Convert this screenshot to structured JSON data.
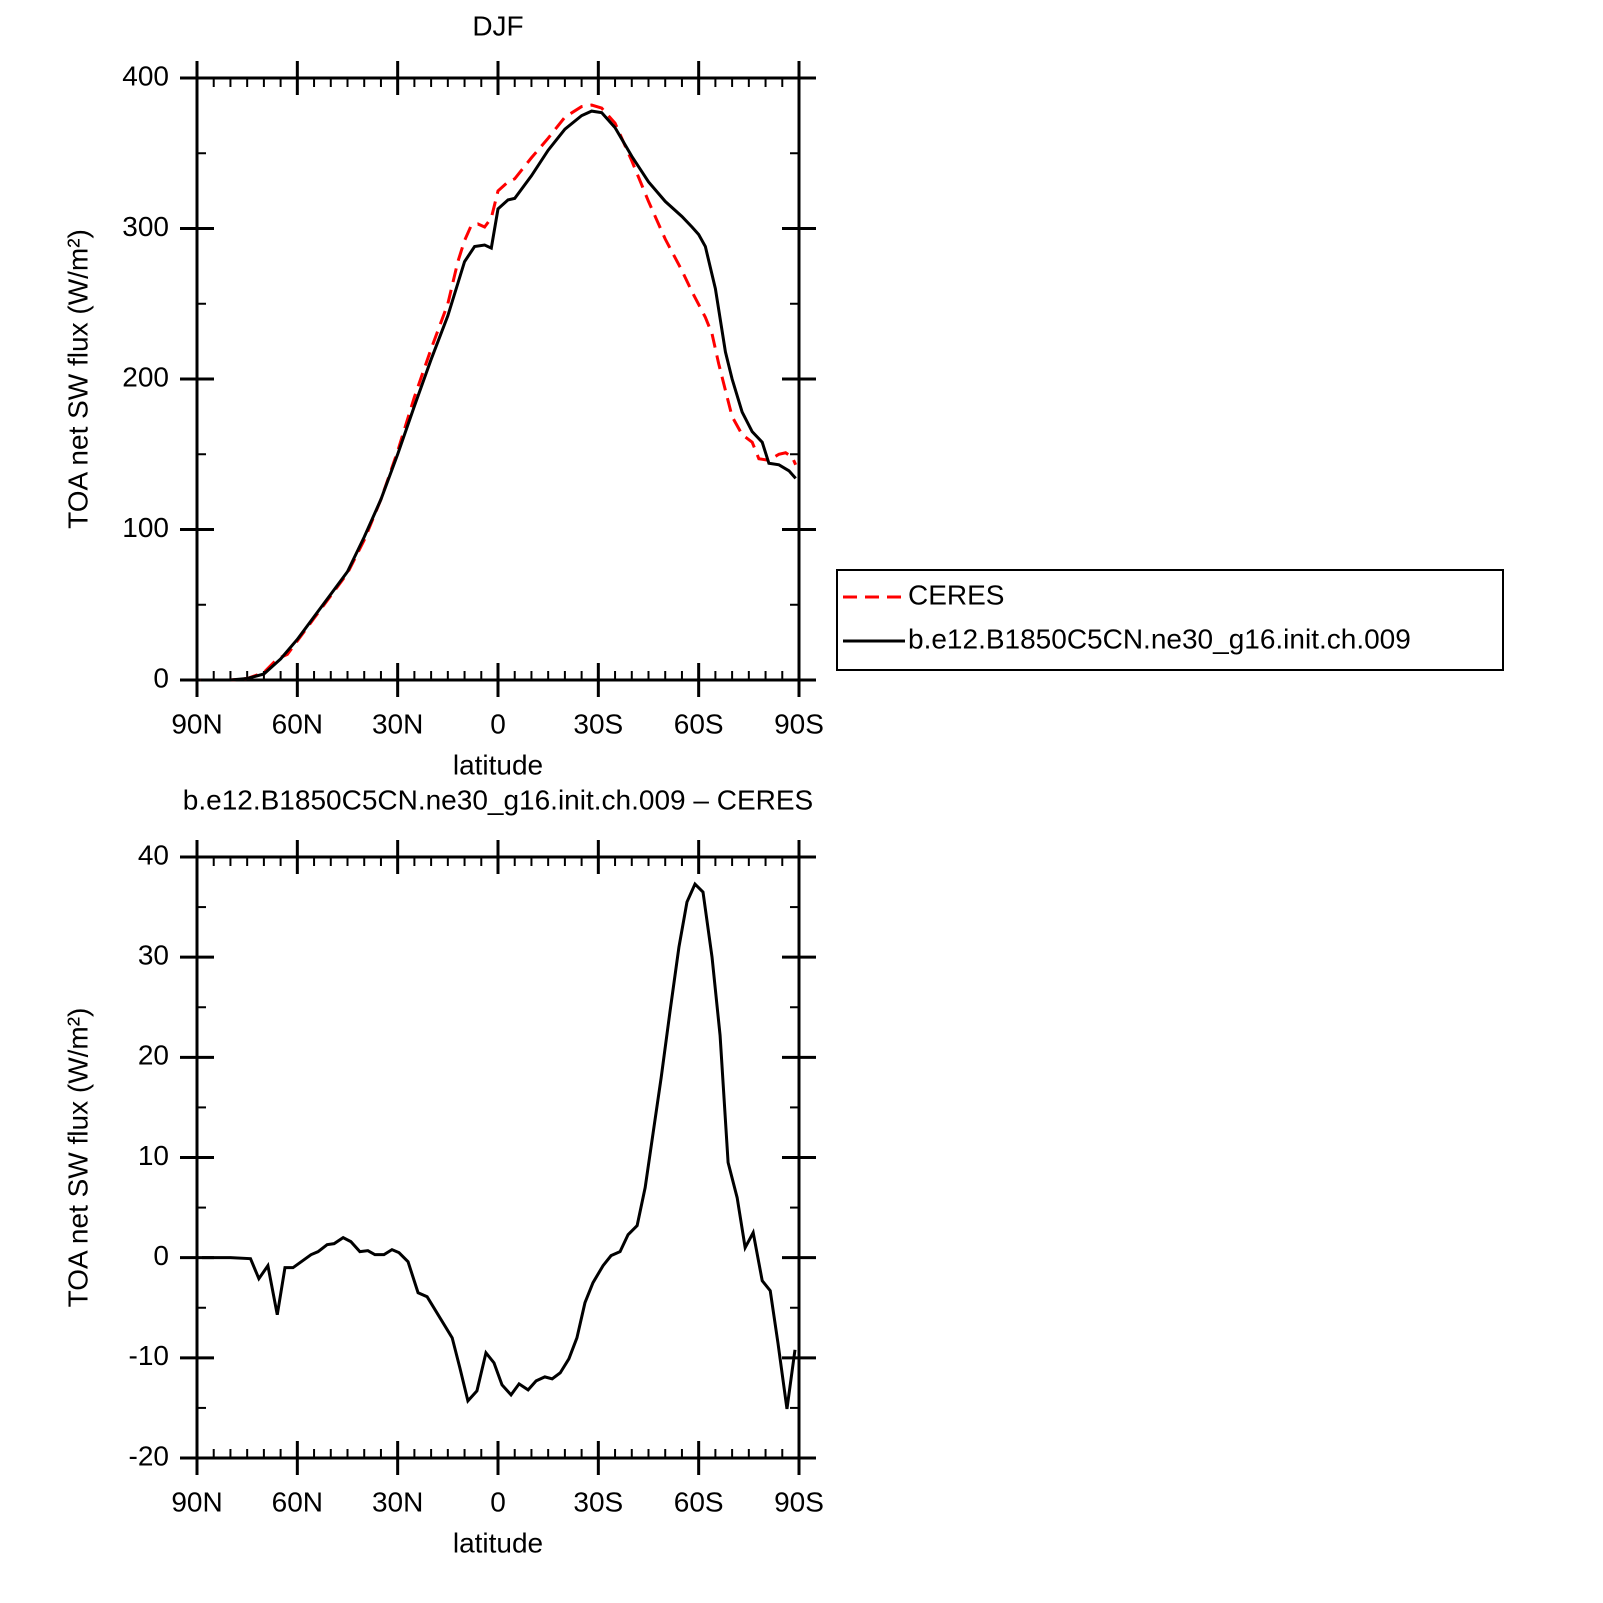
{
  "chart_data": [
    {
      "type": "line",
      "title": "DJF",
      "xlabel": "latitude",
      "ylabel": "TOA net SW flux (W/m²)",
      "xlim": [
        90,
        -90
      ],
      "ylim": [
        0,
        400
      ],
      "xticks": [
        {
          "value": 90,
          "label": "90N"
        },
        {
          "value": 60,
          "label": "60N"
        },
        {
          "value": 30,
          "label": "30N"
        },
        0,
        {
          "value": -30,
          "label": "30S"
        },
        {
          "value": -60,
          "label": "60S"
        },
        {
          "value": -90,
          "label": "90S"
        }
      ],
      "yticks": [
        0,
        100,
        200,
        300,
        400
      ],
      "legend": "right",
      "series": [
        {
          "name": "CERES",
          "color": "#ff0000",
          "linestyle": "dashed",
          "x": [
            89,
            80,
            75,
            70,
            66,
            63,
            60,
            55,
            50,
            45,
            40,
            35,
            30,
            25,
            20,
            15,
            12,
            10,
            8,
            6,
            4,
            2,
            0,
            -3,
            -5,
            -10,
            -15,
            -20,
            -25,
            -28,
            -31,
            -35,
            -40,
            -45,
            -50,
            -55,
            -58,
            -62,
            -64,
            -66,
            -70,
            -73,
            -76,
            -78,
            -81,
            -84,
            -86,
            -88,
            -89
          ],
          "values": [
            0,
            0,
            1,
            5,
            14,
            17,
            26,
            41,
            56,
            71,
            93,
            120,
            152,
            188,
            220,
            250,
            278,
            292,
            302,
            303,
            301,
            307,
            325,
            331,
            333,
            347,
            360,
            374,
            381,
            382,
            380,
            370,
            345,
            318,
            293,
            272,
            258,
            241,
            230,
            210,
            175,
            163,
            158,
            147,
            146,
            150,
            151,
            148,
            143
          ]
        },
        {
          "name": "b.e12.B1850C5CN.ne30_g16.init.ch.009",
          "color": "#000000",
          "linestyle": "solid",
          "x": [
            89,
            80,
            75,
            70,
            65,
            60,
            55,
            50,
            45,
            40,
            35,
            30,
            25,
            20,
            15,
            10,
            7,
            4,
            2,
            0,
            -3,
            -5,
            -10,
            -15,
            -20,
            -25,
            -28,
            -31,
            -35,
            -40,
            -45,
            -50,
            -55,
            -58,
            -60,
            -62,
            -65,
            -68,
            -70,
            -73,
            -76,
            -79,
            -81,
            -84,
            -87,
            -89
          ],
          "values": [
            0,
            0,
            1,
            4,
            14,
            27,
            42,
            57,
            72,
            95,
            120,
            150,
            182,
            213,
            242,
            278,
            288,
            289,
            287,
            313,
            319,
            320,
            335,
            352,
            366,
            375,
            378,
            377,
            367,
            348,
            331,
            318,
            308,
            301,
            296,
            288,
            260,
            218,
            200,
            178,
            165,
            158,
            144,
            143,
            139,
            134
          ]
        }
      ]
    },
    {
      "type": "line",
      "title": "b.e12.B1850C5CN.ne30_g16.init.ch.009 – CERES",
      "xlabel": "latitude",
      "ylabel": "TOA net SW flux (W/m²)",
      "xlim": [
        90,
        -90
      ],
      "ylim": [
        -20,
        40
      ],
      "xticks": [
        {
          "value": 90,
          "label": "90N"
        },
        {
          "value": 60,
          "label": "60N"
        },
        {
          "value": 30,
          "label": "30N"
        },
        0,
        {
          "value": -30,
          "label": "30S"
        },
        {
          "value": -60,
          "label": "60S"
        },
        {
          "value": -90,
          "label": "90S"
        }
      ],
      "yticks": [
        -20,
        -10,
        0,
        10,
        20,
        30,
        40
      ],
      "series": [
        {
          "color": "#000000",
          "linestyle": "solid",
          "x": [
            88.5,
            80,
            74,
            71.5,
            68.8,
            66,
            63.7,
            61.3,
            55.9,
            53.8,
            51.1,
            49,
            46.3,
            44,
            41.3,
            38.9,
            36.8,
            34.1,
            31.7,
            29.6,
            26.9,
            23.9,
            21.2,
            13.7,
            11.4,
            9,
            6.3,
            3.6,
            1.2,
            -1.2,
            -3.9,
            -6.3,
            -9,
            -11.4,
            -14,
            -16.2,
            -18.6,
            -21.2,
            -23.6,
            -26,
            -28.4,
            -31.4,
            -33.8,
            -36.5,
            -38.9,
            -41.6,
            -44,
            -46.4,
            -48.8,
            -51.4,
            -54.1,
            -56.5,
            -58.9,
            -61.3,
            -64,
            -66.4,
            -68.8,
            -71.5,
            -73.9,
            -76.3,
            -79,
            -81.4,
            -83.7,
            -86.4,
            -88.8
          ],
          "values": [
            0,
            0,
            -0.1,
            -2.1,
            -0.8,
            -5.7,
            -1,
            -1,
            0.3,
            0.6,
            1.3,
            1.4,
            2,
            1.6,
            0.6,
            0.7,
            0.3,
            0.3,
            0.8,
            0.5,
            -0.4,
            -3.5,
            -3.9,
            -8,
            -11,
            -14.3,
            -13.3,
            -9.5,
            -10.5,
            -12.7,
            -13.7,
            -12.6,
            -13.2,
            -12.3,
            -11.9,
            -12.1,
            -11.5,
            -10.1,
            -8,
            -4.5,
            -2.5,
            -0.8,
            0.2,
            0.6,
            2.3,
            3.2,
            7,
            12.5,
            18,
            24.5,
            31,
            35.5,
            37.3,
            36.5,
            30,
            22.2,
            9.5,
            6,
            1,
            2.5,
            -2.3,
            -3.3,
            -8.5,
            -15.1,
            -9.2
          ]
        }
      ]
    }
  ]
}
